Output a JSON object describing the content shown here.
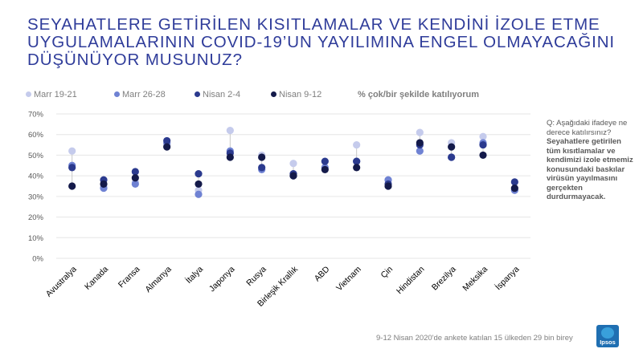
{
  "title": "SEYAHATLERE GETİRİLEN KISITLAMALAR VE KENDİNİ İZOLE ETME\nUYGULAMALARININ COVID-19’UN YAYILIMINA ENGEL OLMAYACAĞINI\nDÜŞÜNÜYOR MUSUNUZ?",
  "legend_note": "% çok/bir şekilde katılıyorum",
  "side_note": {
    "question": "Q: Aşağıdaki ifadeye ne derece katılırsınız?",
    "statement": "Seyahatlere getirilen tüm kısıtlamalar ve kendimizi izole etmemiz konusundaki baskılar virüsün yayılmasını gerçekten durdurmayacak."
  },
  "footnote": "9-12 Nisan 2020'de ankete katılan 15 ülkeden 29 bin birey",
  "logo_text": "Ipsos",
  "colors": {
    "s1": "#c5cbec",
    "s2": "#6f82d3",
    "s3": "#2b3a8e",
    "s4": "#141a4a",
    "grid": "#e6e6e6",
    "axis_text": "#595959"
  },
  "chart_data": {
    "type": "scatter",
    "categories": [
      "Avustralya",
      "Kanada",
      "Fransa",
      "Almanya",
      "İtalya",
      "Japonya",
      "Rusya",
      "Birleşik Krallık",
      "ABD",
      "Vietnam",
      "Çin",
      "Hindistan",
      "Brezilya",
      "Meksika",
      "İspanya"
    ],
    "y_ticks": [
      "0%",
      "10%",
      "20%",
      "30%",
      "40%",
      "50%",
      "60%",
      "70%"
    ],
    "ylim": [
      0,
      70
    ],
    "grid": true,
    "legend_position": "top",
    "series": [
      {
        "name": "Marr 19-21",
        "values": [
          52,
          35,
          37,
          55,
          33,
          62,
          50,
          46,
          44,
          55,
          38,
          61,
          56,
          59,
          33
        ]
      },
      {
        "name": "Marr 26-28",
        "values": [
          45,
          34,
          36,
          56,
          31,
          52,
          43,
          40,
          44,
          47,
          38,
          52,
          49,
          56,
          33
        ]
      },
      {
        "name": "Nisan  2-4",
        "values": [
          44,
          38,
          42,
          57,
          41,
          51,
          44,
          41,
          47,
          47,
          36,
          55,
          49,
          55,
          37
        ]
      },
      {
        "name": "Nisan 9-12",
        "values": [
          35,
          36,
          39,
          54,
          36,
          49,
          49,
          40,
          43,
          44,
          35,
          56,
          54,
          50,
          34
        ]
      }
    ]
  }
}
